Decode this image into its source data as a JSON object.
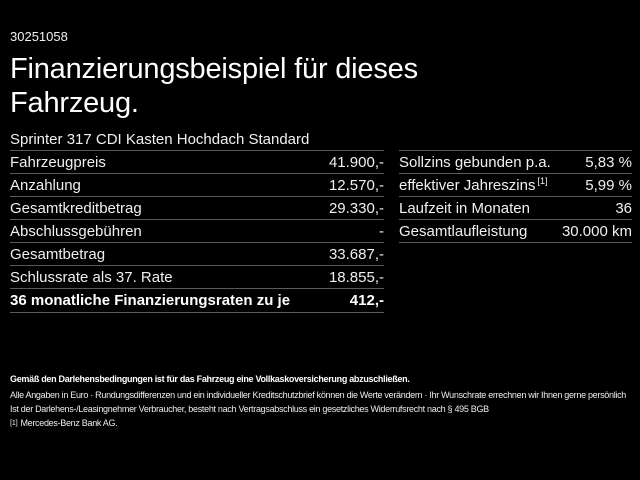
{
  "meta": {
    "reference_number": "30251058"
  },
  "title": "Finanzierungsbeispiel für dieses Fahrzeug.",
  "model_line": "Sprinter 317 CDI Kasten Hochdach Standard",
  "finance_table": {
    "rows": [
      {
        "label": "Fahrzeugpreis",
        "value": "41.900,-"
      },
      {
        "label": "Anzahlung",
        "value": "12.570,-"
      },
      {
        "label": "Gesamtkreditbetrag",
        "value": "29.330,-"
      },
      {
        "label": "Abschlussgebühren",
        "value": "-"
      },
      {
        "label": "Gesamtbetrag",
        "value": "33.687,-"
      },
      {
        "label": "Schlussrate als 37. Rate",
        "value": "18.855,-"
      }
    ],
    "total_row": {
      "label": "36 monatliche Finanzierungsraten zu je",
      "value": "412,-"
    }
  },
  "conditions_table": {
    "rows": [
      {
        "label": "Sollzins gebunden p.a.",
        "sup": "",
        "value": "5,83 %"
      },
      {
        "label": "effektiver Jahreszins",
        "sup": "[1]",
        "value": "5,99 %"
      },
      {
        "label": "Laufzeit in Monaten",
        "sup": "",
        "value": "36"
      },
      {
        "label": "Gesamtlaufleistung",
        "sup": "",
        "value": "30.000 km"
      }
    ]
  },
  "footer": {
    "line1": "Gemäß den Darlehensbedingungen ist für das Fahrzeug eine Vollkaskoversicherung abzuschließen.",
    "line2": "Alle Angaben in Euro · Rundungsdifferenzen und ein individueller Kreditschutzbrief können die Werte verändern · Ihr Wunschrate errechnen wir Ihnen gerne persönlich",
    "line3": "Ist der Darlehens-/Leasingnehmer Verbraucher, besteht nach Vertragsabschluss ein gesetzliches Widerrufsrecht nach § 495 BGB",
    "footnote_marker": "[1]",
    "footnote_text": "Mercedes-Benz Bank AG."
  },
  "colors": {
    "background": "#000000",
    "text": "#ffffff",
    "divider": "#5a5a5a"
  }
}
